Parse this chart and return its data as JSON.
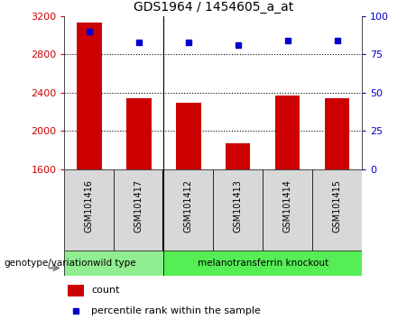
{
  "title": "GDS1964 / 1454605_a_at",
  "samples": [
    "GSM101416",
    "GSM101417",
    "GSM101412",
    "GSM101413",
    "GSM101414",
    "GSM101415"
  ],
  "counts": [
    3130,
    2340,
    2290,
    1870,
    2370,
    2340
  ],
  "percentile_ranks": [
    90,
    83,
    83,
    81,
    84,
    84
  ],
  "groups": [
    {
      "label": "wild type",
      "indices": [
        0,
        1
      ],
      "color": "#90ee90"
    },
    {
      "label": "melanotransferrin knockout",
      "indices": [
        2,
        3,
        4,
        5
      ],
      "color": "#55ee55"
    }
  ],
  "bar_color": "#cc0000",
  "dot_color": "#0000cc",
  "ylim_left": [
    1600,
    3200
  ],
  "ylim_right": [
    0,
    100
  ],
  "yticks_left": [
    1600,
    2000,
    2400,
    2800,
    3200
  ],
  "yticks_right": [
    0,
    25,
    50,
    75,
    100
  ],
  "grid_values": [
    2000,
    2400,
    2800
  ],
  "bar_width": 0.5,
  "legend_count_label": "count",
  "legend_percentile_label": "percentile rank within the sample",
  "genotype_label": "genotype/variation",
  "bar_label_color": "#cc0000",
  "dot_label_color": "#0000cc",
  "bg_gray": "#d8d8d8",
  "bg_white": "#ffffff"
}
